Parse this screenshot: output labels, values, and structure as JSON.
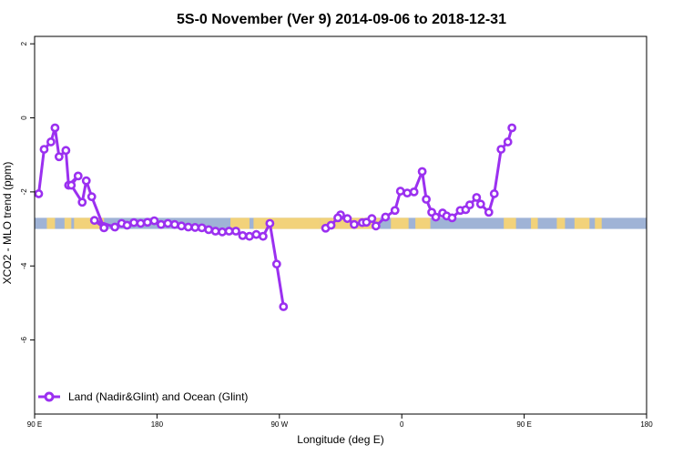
{
  "chart_data": {
    "type": "line",
    "title": "5S-0 November (Ver 9)   2014-09-06 to 2018-12-31",
    "xlabel": "Longitude (deg E)",
    "ylabel": "XCO2 - MLO trend (ppm)",
    "xlim": [
      90,
      540
    ],
    "ylim": [
      -8,
      2.2
    ],
    "x_ticks": [
      {
        "value": 90,
        "label": "90 E"
      },
      {
        "value": 180,
        "label": "180"
      },
      {
        "value": 270,
        "label": "90 W"
      },
      {
        "value": 360,
        "label": "0"
      },
      {
        "value": 450,
        "label": "90 E"
      },
      {
        "value": 540,
        "label": "180"
      }
    ],
    "y_ticks": [
      {
        "value": 2,
        "label": "2"
      },
      {
        "value": 0,
        "label": "0"
      },
      {
        "value": -2,
        "label": "-2"
      },
      {
        "value": -4,
        "label": "-4"
      },
      {
        "value": -6,
        "label": "-6"
      }
    ],
    "grid": false,
    "legend_position": "bottom-left",
    "colors": {
      "series": "#9b30f0",
      "ocean_band": "#9fb3d6",
      "land_band": "#f2d27a"
    },
    "band": {
      "y_range": [
        -3.0,
        -2.7
      ],
      "land_segments": [
        [
          99,
          105
        ],
        [
          112,
          117
        ],
        [
          119,
          141
        ],
        [
          234,
          248
        ],
        [
          251,
          300
        ],
        [
          300,
          344
        ],
        [
          352,
          365
        ],
        [
          370,
          381
        ],
        [
          435,
          444
        ],
        [
          455,
          460
        ],
        [
          474,
          480
        ],
        [
          487,
          498
        ],
        [
          502,
          507
        ]
      ]
    },
    "series": [
      {
        "name": "Land (Nadir&Glint) and Ocean (Glint)",
        "segments": [
          {
            "x": [
              93,
              97,
              102,
              105,
              108,
              113,
              115,
              122,
              117,
              125,
              128,
              132,
              141,
              134,
              149,
              154,
              158,
              163,
              168,
              173,
              178,
              183,
              188,
              193,
              198,
              203,
              208,
              213,
              218,
              223,
              228,
              233,
              238,
              243,
              248,
              253,
              258,
              263,
              268,
              273,
              279,
              281,
              284,
              286
            ],
            "y": [
              -2.05,
              -0.85,
              -0.65,
              -0.27,
              -1.05,
              -0.88,
              -1.82,
              -1.57,
              -1.82,
              -2.28,
              -1.7,
              -2.13,
              -2.97,
              -2.77,
              -2.95,
              -2.85,
              -2.9,
              -2.83,
              -2.85,
              -2.82,
              -2.78,
              -2.88,
              -2.85,
              -2.88,
              -2.92,
              -2.95,
              -2.96,
              -2.97,
              -3.02,
              -3.06,
              -3.08,
              -3.06,
              -3.06,
              -3.18,
              -3.2,
              -3.15,
              -3.2,
              -2.85,
              -3.95,
              -5.1,
              null,
              null,
              null,
              null
            ]
          },
          {
            "x": [
              304,
              308,
              315,
              313,
              320,
              325,
              331,
              334,
              338,
              341,
              348,
              355,
              359,
              364,
              369,
              375,
              378,
              382,
              385,
              390,
              393,
              397,
              403,
              407,
              410,
              415,
              418,
              424,
              428,
              433,
              438,
              441
            ],
            "y": [
              -2.98,
              -2.9,
              -2.62,
              -2.7,
              -2.72,
              -2.88,
              -2.83,
              -2.82,
              -2.72,
              -2.92,
              -2.68,
              -2.5,
              -1.98,
              -2.03,
              -2.0,
              -1.45,
              -2.2,
              -2.55,
              -2.68,
              -2.57,
              -2.65,
              -2.7,
              -2.5,
              -2.48,
              -2.35,
              -2.15,
              -2.33,
              -2.55,
              -2.05,
              -0.85,
              -0.65,
              -0.27
            ]
          }
        ]
      }
    ],
    "legend_label": "Land (Nadir&Glint) and Ocean (Glint)"
  }
}
